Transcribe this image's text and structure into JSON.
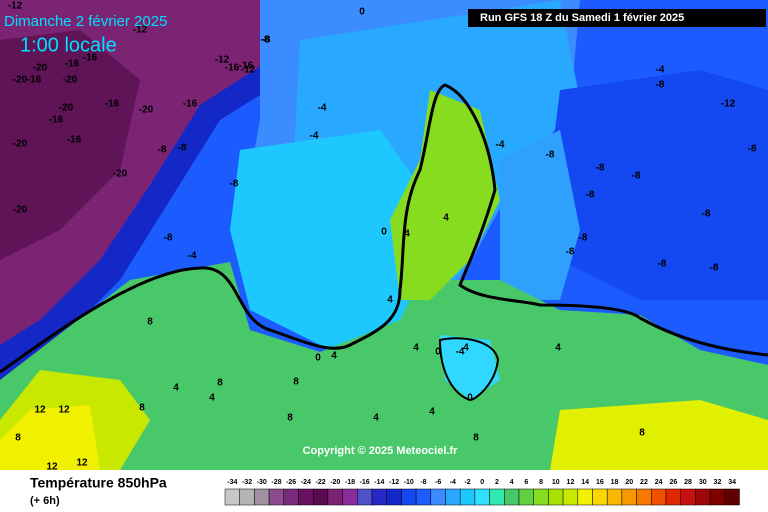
{
  "header": {
    "title": "Dimanche 2 février 2025",
    "time": "1:00 locale",
    "run": "Run GFS 18 Z du Samedi 1 février 2025"
  },
  "copyright": "Copyright © 2025 Meteociel.fr",
  "footer": {
    "variable": "Température 850hPa",
    "step": "(+ 6h)"
  },
  "contour_labels": [
    -12,
    -12,
    -8,
    -16,
    -16,
    -12,
    -20,
    -16,
    -20,
    -16,
    -20,
    -16,
    -12,
    -20,
    -16,
    -16,
    -20,
    -20,
    -20,
    -16,
    -16,
    -20,
    -8,
    -8,
    -4,
    -4,
    -8,
    -8,
    0,
    -8,
    -4,
    -8,
    -8,
    -8,
    -8,
    -12,
    -8,
    -4,
    -8,
    -8,
    -8,
    -8,
    -8,
    -8,
    -4,
    4,
    4,
    0,
    4,
    4,
    4,
    0,
    -4,
    0,
    0,
    4,
    4,
    8,
    8,
    8,
    8,
    4,
    4,
    8,
    8,
    12,
    12,
    8,
    12,
    12,
    8,
    4,
    4
  ],
  "legend_ticks": [
    -34,
    -32,
    -30,
    -28,
    -26,
    -24,
    -22,
    -20,
    -18,
    -16,
    -14,
    -12,
    -10,
    -8,
    -6,
    -4,
    -2,
    0,
    2,
    4,
    6,
    8,
    10,
    12,
    14,
    16,
    18,
    20,
    22,
    24,
    26,
    28,
    30,
    32,
    34
  ]
}
